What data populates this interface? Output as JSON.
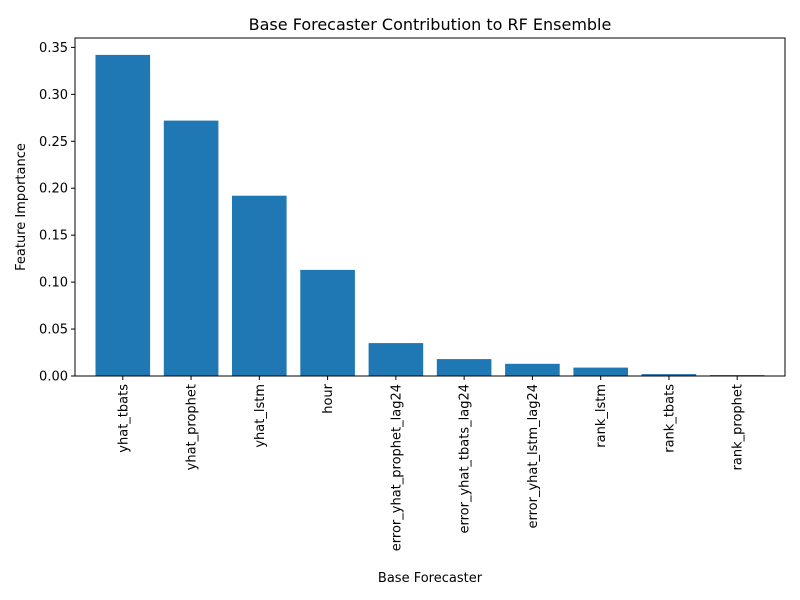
{
  "chart_data": {
    "type": "bar",
    "title": "Base Forecaster Contribution to RF Ensemble",
    "xlabel": "Base Forecaster",
    "ylabel": "Feature Importance",
    "categories": [
      "yhat_tbats",
      "yhat_prophet",
      "yhat_lstm",
      "hour",
      "error_yhat_prophet_lag24",
      "error_yhat_tbats_lag24",
      "error_yhat_lstm_lag24",
      "rank_lstm",
      "rank_tbats",
      "rank_prophet"
    ],
    "values": [
      0.342,
      0.272,
      0.192,
      0.113,
      0.035,
      0.018,
      0.013,
      0.009,
      0.002,
      0.001
    ],
    "ylim": [
      0,
      0.36
    ],
    "yticks": [
      0.0,
      0.05,
      0.1,
      0.15,
      0.2,
      0.25,
      0.3,
      0.35
    ],
    "ytick_labels": [
      "0.00",
      "0.05",
      "0.10",
      "0.15",
      "0.20",
      "0.25",
      "0.30",
      "0.35"
    ],
    "bar_color": "#1f77b4",
    "grid": false,
    "legend": "none"
  }
}
